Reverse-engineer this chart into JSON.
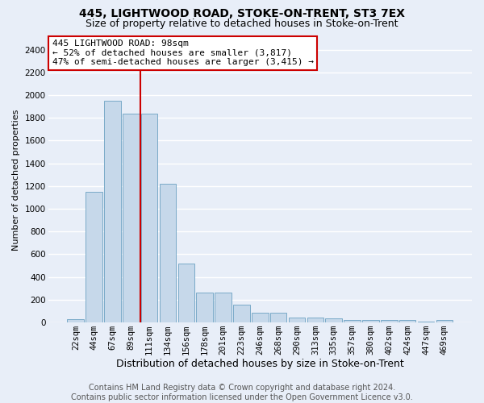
{
  "title": "445, LIGHTWOOD ROAD, STOKE-ON-TRENT, ST3 7EX",
  "subtitle": "Size of property relative to detached houses in Stoke-on-Trent",
  "xlabel": "Distribution of detached houses by size in Stoke-on-Trent",
  "ylabel": "Number of detached properties",
  "footer_line1": "Contains HM Land Registry data © Crown copyright and database right 2024.",
  "footer_line2": "Contains public sector information licensed under the Open Government Licence v3.0.",
  "annotation_line1": "445 LIGHTWOOD ROAD: 98sqm",
  "annotation_line2": "← 52% of detached houses are smaller (3,817)",
  "annotation_line3": "47% of semi-detached houses are larger (3,415) →",
  "bar_categories": [
    "22sqm",
    "44sqm",
    "67sqm",
    "89sqm",
    "111sqm",
    "134sqm",
    "156sqm",
    "178sqm",
    "201sqm",
    "223sqm",
    "246sqm",
    "268sqm",
    "290sqm",
    "313sqm",
    "335sqm",
    "357sqm",
    "380sqm",
    "402sqm",
    "424sqm",
    "447sqm",
    "469sqm"
  ],
  "bar_values": [
    30,
    1150,
    1950,
    1840,
    1840,
    1220,
    520,
    265,
    265,
    155,
    85,
    85,
    45,
    45,
    35,
    20,
    20,
    20,
    20,
    5,
    20
  ],
  "bar_color": "#c6d8ea",
  "bar_edgecolor": "#7aaac8",
  "vline_color": "#cc0000",
  "vline_x": 3.5,
  "ylim_max": 2500,
  "yticks": [
    0,
    200,
    400,
    600,
    800,
    1000,
    1200,
    1400,
    1600,
    1800,
    2000,
    2200,
    2400
  ],
  "bg_color": "#e8eef8",
  "grid_color": "#ffffff",
  "ann_box_edge": "#cc0000",
  "ann_box_face": "#ffffff",
  "title_fs": 10,
  "subtitle_fs": 9,
  "xlabel_fs": 9,
  "ylabel_fs": 8,
  "tick_fs": 7.5,
  "footer_fs": 7,
  "ann_fs": 8
}
